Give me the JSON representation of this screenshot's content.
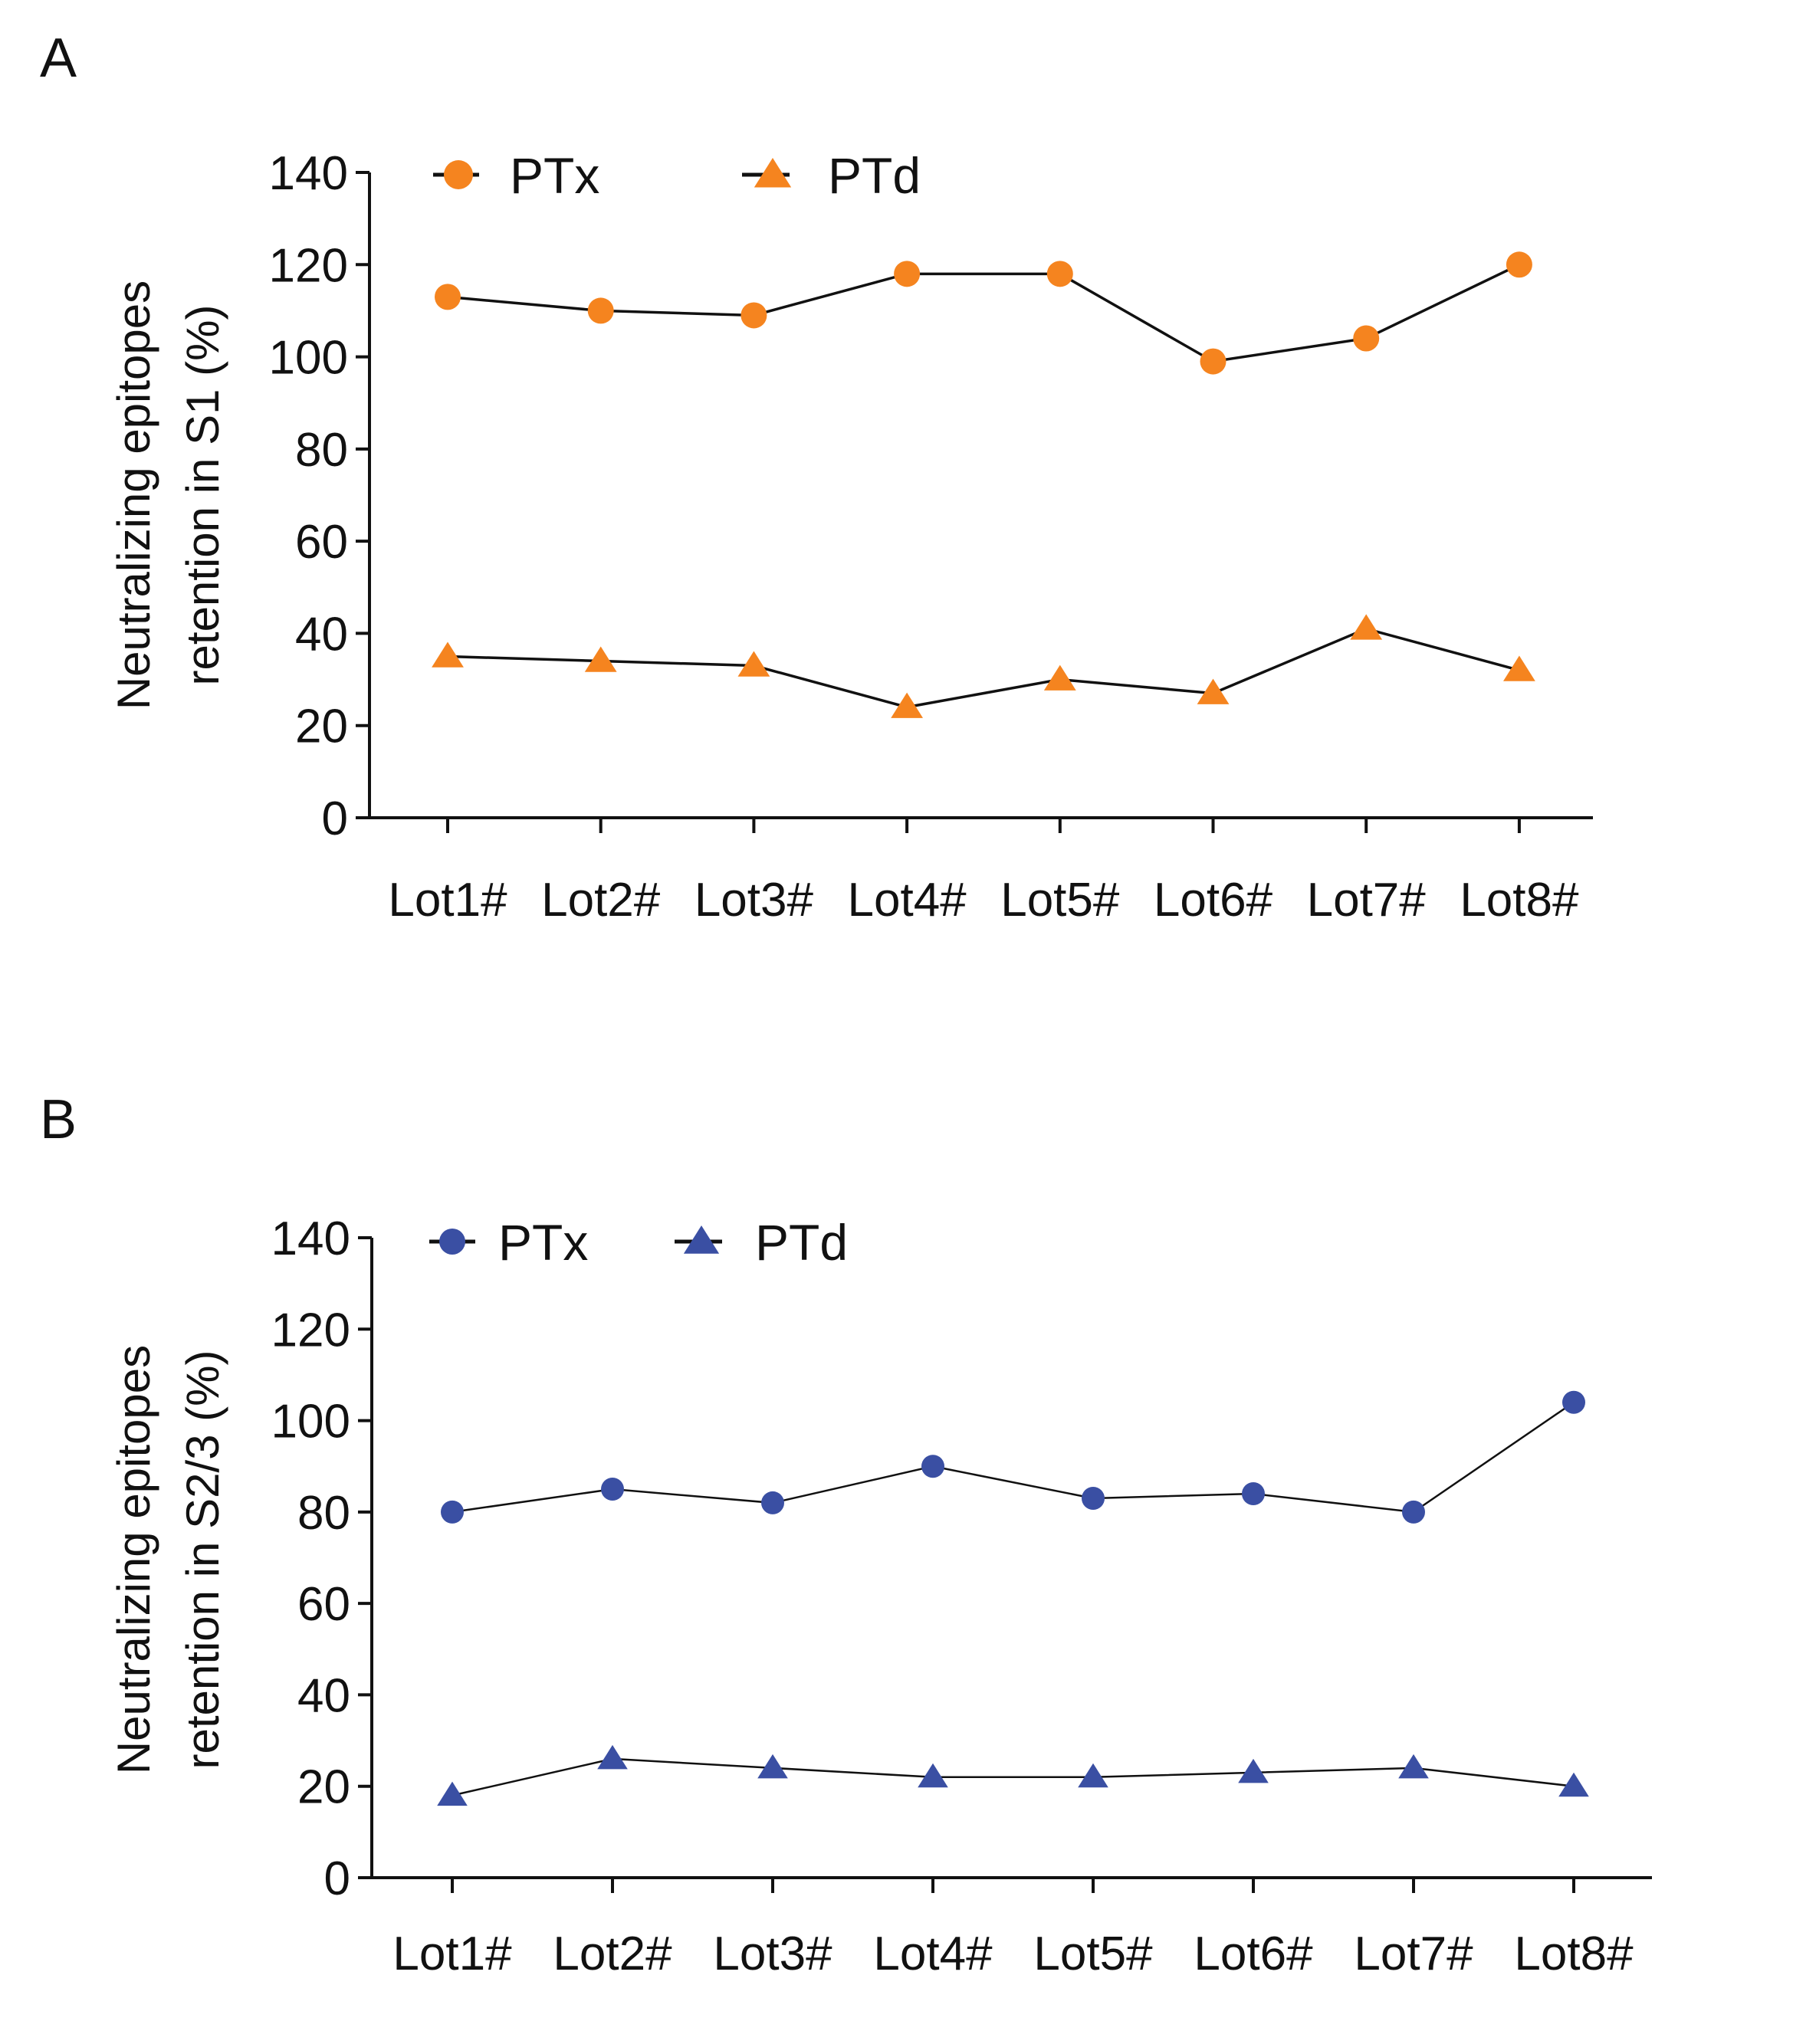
{
  "chart_data": [
    {
      "panel": "A",
      "type": "line",
      "ylabel": [
        "Neutralizing epitopes",
        "retention in S1 (%)"
      ],
      "ylim": [
        0,
        140
      ],
      "yticks": [
        0,
        20,
        40,
        60,
        80,
        100,
        120,
        140
      ],
      "categories": [
        "Lot1#",
        "Lot2#",
        "Lot3#",
        "Lot4#",
        "Lot5#",
        "Lot6#",
        "Lot7#",
        "Lot8#"
      ],
      "legend_position": "top-left",
      "series": [
        {
          "name": "PTx",
          "marker": "circle",
          "color": "#f5841f",
          "values": [
            113,
            110,
            109,
            118,
            118,
            99,
            104,
            120
          ]
        },
        {
          "name": "PTd",
          "marker": "triangle",
          "color": "#f5841f",
          "values": [
            35,
            34,
            33,
            24,
            30,
            27,
            41,
            32
          ]
        }
      ]
    },
    {
      "panel": "B",
      "type": "line",
      "ylabel": [
        "Neutralizing epitopes",
        "retention in S2/3 (%)"
      ],
      "ylim": [
        0,
        140
      ],
      "yticks": [
        0,
        20,
        40,
        60,
        80,
        100,
        120,
        140
      ],
      "categories": [
        "Lot1#",
        "Lot2#",
        "Lot3#",
        "Lot4#",
        "Lot5#",
        "Lot6#",
        "Lot7#",
        "Lot8#"
      ],
      "legend_position": "top-left",
      "series": [
        {
          "name": "PTx",
          "marker": "circle",
          "color": "#3a4fa3",
          "values": [
            80,
            85,
            82,
            90,
            83,
            84,
            80,
            104
          ]
        },
        {
          "name": "PTd",
          "marker": "triangle",
          "color": "#3a4fa3",
          "values": [
            18,
            26,
            24,
            22,
            22,
            23,
            24,
            20
          ]
        }
      ]
    }
  ]
}
